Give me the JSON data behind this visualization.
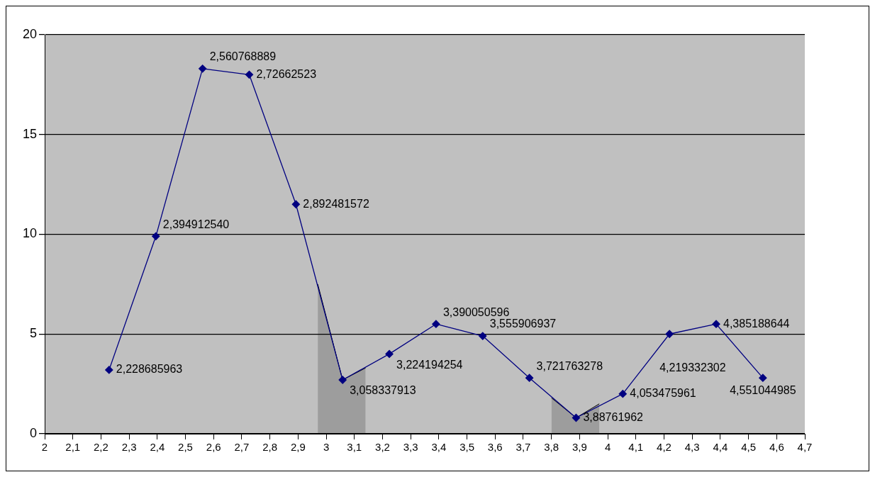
{
  "chart_data": {
    "type": "line",
    "x": [
      2.228685963,
      2.39491254,
      2.560768889,
      2.72662523,
      2.892481572,
      3.058337913,
      3.224194254,
      3.390050596,
      3.555906937,
      3.721763278,
      3.88761962,
      4.053475961,
      4.219332302,
      4.385188644,
      4.551044985
    ],
    "series": [
      {
        "color": "#000080",
        "marker": "diamond",
        "values": [
          3.2,
          9.9,
          18.3,
          18.0,
          11.5,
          2.7,
          4.0,
          5.5,
          4.9,
          2.8,
          0.8,
          2.0,
          5.0,
          5.5,
          2.8
        ],
        "value_labels": [
          "2,228685963",
          "2,394912540",
          "2,560768889",
          "2,72662523",
          "2,892481572",
          "3,058337913",
          "3,224194254",
          "3,390050596",
          "3,555906937",
          "3,721763278",
          "3,88761962",
          "4,053475961",
          "4,219332302",
          "4,385188644",
          "4,551044985"
        ]
      },
      {
        "type": "area",
        "color": "#000000",
        "marker": "none",
        "x": [
          2.97,
          3.058337913,
          3.14
        ],
        "values": [
          7.5,
          2.7,
          3.3
        ]
      },
      {
        "type": "area",
        "color": "#000000",
        "marker": "none",
        "x": [
          3.8,
          3.88761962,
          3.97
        ],
        "values": [
          1.8,
          0.8,
          1.5
        ]
      }
    ],
    "xlim": [
      2,
      4.7
    ],
    "xticks": [
      2,
      {
        "value": 2.1,
        "label": "2,1"
      },
      {
        "value": 2.2,
        "label": "2,2"
      },
      {
        "value": 2.3,
        "label": "2,3"
      },
      {
        "value": 2.4,
        "label": "2,4"
      },
      {
        "value": 2.5,
        "label": "2,5"
      },
      {
        "value": 2.6,
        "label": "2,6"
      },
      {
        "value": 2.7,
        "label": "2,7"
      },
      {
        "value": 2.8,
        "label": "2,8"
      },
      {
        "value": 2.9,
        "label": "2,9"
      },
      3,
      {
        "value": 3.1,
        "label": "3,1"
      },
      {
        "value": 3.2,
        "label": "3,2"
      },
      {
        "value": 3.3,
        "label": "3,3"
      },
      {
        "value": 3.4,
        "label": "3,4"
      },
      {
        "value": 3.5,
        "label": "3,5"
      },
      {
        "value": 3.6,
        "label": "3,6"
      },
      {
        "value": 3.7,
        "label": "3,7"
      },
      {
        "value": 3.8,
        "label": "3,8"
      },
      {
        "value": 3.9,
        "label": "3,9"
      },
      4,
      {
        "value": 4.1,
        "label": "4,1"
      },
      {
        "value": 4.2,
        "label": "4,2"
      },
      {
        "value": 4.3,
        "label": "4,3"
      },
      {
        "value": 4.4,
        "label": "4,4"
      },
      {
        "value": 4.5,
        "label": "4,5"
      },
      {
        "value": 4.6,
        "label": "4,6"
      },
      {
        "value": 4.7,
        "label": "4,7"
      }
    ],
    "ylim": [
      0,
      20
    ],
    "yticks": [
      0,
      5,
      10,
      15,
      20
    ],
    "grid": "y",
    "legend": false,
    "line_style": "solid"
  }
}
